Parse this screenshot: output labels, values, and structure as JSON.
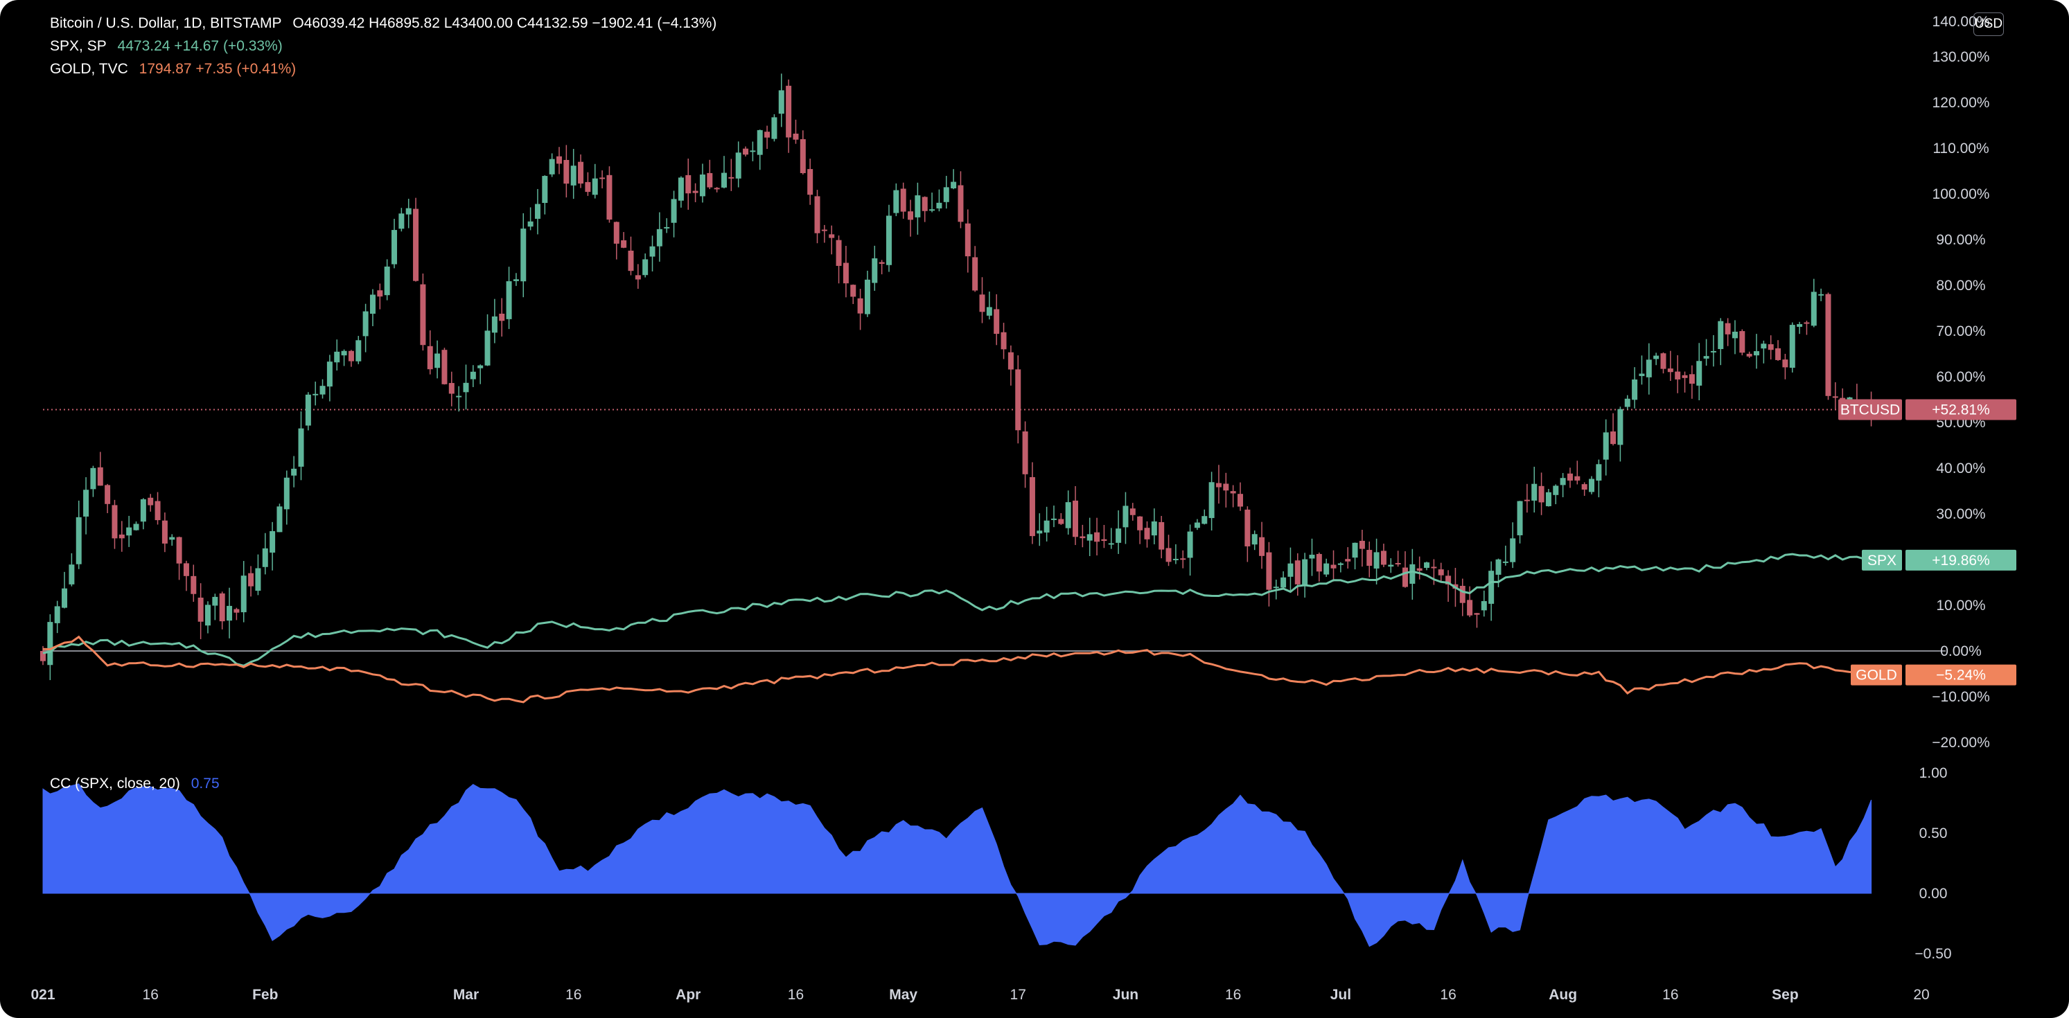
{
  "legend": {
    "btc": {
      "title": "Bitcoin / U.S. Dollar, 1D, BITSTAMP",
      "ohlc": "O46039.42 H46895.82 L43400.00 C44132.59 −1902.41 (−4.13%)"
    },
    "spx": {
      "title": "SPX, SP",
      "value": "4473.24 +14.67 (+0.33%)"
    },
    "gold": {
      "title": "GOLD, TVC",
      "value": "1794.87 +7.35 (+0.41%)"
    },
    "cc": {
      "title": "CC (SPX, close, 20)",
      "value": "0.75"
    }
  },
  "currency_button": "USD",
  "colors": {
    "up": "#5fb59a",
    "down": "#c25e6c",
    "spx": "#6fc4a6",
    "gold": "#f0845c",
    "cc": "#3f66f5",
    "zero": "#9598a1"
  },
  "chart_data": [
    {
      "type": "candlestick+line",
      "title": "Bitcoin / U.S. Dollar, 1D, BITSTAMP",
      "y_unit": "%",
      "ylim": [
        -20,
        140
      ],
      "y_ticks": [
        130,
        120,
        110,
        100,
        90,
        80,
        70,
        60,
        50,
        40,
        30,
        20,
        10,
        0,
        -10,
        -20
      ],
      "y_tick_labels": [
        "130.00%",
        "120.00%",
        "110.00%",
        "100.00%",
        "90.00%",
        "80.00%",
        "70.00%",
        "60.00%",
        "50.00%",
        "40.00%",
        "30.00%",
        "20.00%",
        "10.00%",
        "0.00%",
        "−10.00%",
        "−20.00%"
      ],
      "y_top_partial_label": "140.00%",
      "x_range": [
        "2021-01-01",
        "2021-09-20"
      ],
      "x_ticks": [
        {
          "date": "2021-01-01",
          "label": "021"
        },
        {
          "date": "2021-01-16",
          "label": "16"
        },
        {
          "date": "2021-02-01",
          "label": "Feb"
        },
        {
          "date": "2021-03-01",
          "label": "Mar"
        },
        {
          "date": "2021-03-16",
          "label": "16"
        },
        {
          "date": "2021-04-01",
          "label": "Apr"
        },
        {
          "date": "2021-04-16",
          "label": "16"
        },
        {
          "date": "2021-05-01",
          "label": "May"
        },
        {
          "date": "2021-05-17",
          "label": "17"
        },
        {
          "date": "2021-06-01",
          "label": "Jun"
        },
        {
          "date": "2021-06-16",
          "label": "16"
        },
        {
          "date": "2021-07-01",
          "label": "Jul"
        },
        {
          "date": "2021-07-16",
          "label": "16"
        },
        {
          "date": "2021-08-01",
          "label": "Aug"
        },
        {
          "date": "2021-08-16",
          "label": "16"
        },
        {
          "date": "2021-09-01",
          "label": "Sep"
        },
        {
          "date": "2021-09-20",
          "label": "20"
        }
      ],
      "btc_close_keypoints": [
        [
          "2021-01-01",
          0
        ],
        [
          "2021-01-04",
          14
        ],
        [
          "2021-01-08",
          40
        ],
        [
          "2021-01-12",
          24
        ],
        [
          "2021-01-16",
          33
        ],
        [
          "2021-01-22",
          10
        ],
        [
          "2021-01-27",
          8
        ],
        [
          "2021-02-01",
          22
        ],
        [
          "2021-02-08",
          58
        ],
        [
          "2021-02-14",
          68
        ],
        [
          "2021-02-21",
          97
        ],
        [
          "2021-02-23",
          67
        ],
        [
          "2021-02-28",
          55
        ],
        [
          "2021-03-05",
          70
        ],
        [
          "2021-03-13",
          108
        ],
        [
          "2021-03-20",
          100
        ],
        [
          "2021-03-25",
          80
        ],
        [
          "2021-03-31",
          103
        ],
        [
          "2021-04-05",
          100
        ],
        [
          "2021-04-14",
          120
        ],
        [
          "2021-04-18",
          98
        ],
        [
          "2021-04-25",
          73
        ],
        [
          "2021-04-30",
          98
        ],
        [
          "2021-05-05",
          95
        ],
        [
          "2021-05-08",
          102
        ],
        [
          "2021-05-12",
          75
        ],
        [
          "2021-05-16",
          65
        ],
        [
          "2021-05-19",
          25
        ],
        [
          "2021-05-22",
          32
        ],
        [
          "2021-05-28",
          24
        ],
        [
          "2021-06-02",
          30
        ],
        [
          "2021-06-08",
          20
        ],
        [
          "2021-06-14",
          38
        ],
        [
          "2021-06-21",
          16
        ],
        [
          "2021-06-27",
          18
        ],
        [
          "2021-07-03",
          22
        ],
        [
          "2021-07-08",
          18
        ],
        [
          "2021-07-14",
          16
        ],
        [
          "2021-07-20",
          7
        ],
        [
          "2021-07-26",
          30
        ],
        [
          "2021-08-01",
          41
        ],
        [
          "2021-08-04",
          35
        ],
        [
          "2021-08-08",
          48
        ],
        [
          "2021-08-14",
          64
        ],
        [
          "2021-08-18",
          58
        ],
        [
          "2021-08-23",
          70
        ],
        [
          "2021-08-31",
          62
        ],
        [
          "2021-09-06",
          80
        ],
        [
          "2021-09-07",
          58
        ],
        [
          "2021-09-13",
          52.81
        ]
      ],
      "series": [
        {
          "name": "BTCUSD",
          "last_label": "+52.81%",
          "last_value": 52.81
        },
        {
          "name": "SPX",
          "last_label": "+19.86%",
          "last_value": 19.86,
          "keypoints": [
            [
              "2021-01-01",
              0
            ],
            [
              "2021-01-08",
              2
            ],
            [
              "2021-01-22",
              1
            ],
            [
              "2021-01-29",
              -3
            ],
            [
              "2021-02-05",
              3
            ],
            [
              "2021-02-16",
              5
            ],
            [
              "2021-02-25",
              4
            ],
            [
              "2021-03-04",
              1
            ],
            [
              "2021-03-12",
              6
            ],
            [
              "2021-03-22",
              5
            ],
            [
              "2021-04-01",
              8
            ],
            [
              "2021-04-16",
              11
            ],
            [
              "2021-05-07",
              13
            ],
            [
              "2021-05-12",
              9
            ],
            [
              "2021-05-21",
              12
            ],
            [
              "2021-06-08",
              13
            ],
            [
              "2021-06-18",
              12
            ],
            [
              "2021-06-30",
              15
            ],
            [
              "2021-07-12",
              17
            ],
            [
              "2021-07-19",
              13
            ],
            [
              "2021-07-26",
              17
            ],
            [
              "2021-08-06",
              18
            ],
            [
              "2021-08-20",
              18
            ],
            [
              "2021-09-02",
              21
            ],
            [
              "2021-09-13",
              19.86
            ]
          ]
        },
        {
          "name": "GOLD",
          "last_label": "−5.24%",
          "last_value": -5.24,
          "keypoints": [
            [
              "2021-01-01",
              0
            ],
            [
              "2021-01-06",
              3
            ],
            [
              "2021-01-10",
              -3
            ],
            [
              "2021-01-27",
              -3
            ],
            [
              "2021-02-12",
              -4
            ],
            [
              "2021-02-26",
              -9
            ],
            [
              "2021-03-08",
              -11
            ],
            [
              "2021-03-20",
              -8
            ],
            [
              "2021-03-31",
              -9
            ],
            [
              "2021-04-16",
              -6
            ],
            [
              "2021-05-05",
              -3
            ],
            [
              "2021-05-20",
              -1
            ],
            [
              "2021-06-02",
              0
            ],
            [
              "2021-06-10",
              -1
            ],
            [
              "2021-06-17",
              -5
            ],
            [
              "2021-06-29",
              -7
            ],
            [
              "2021-07-15",
              -4
            ],
            [
              "2021-08-06",
              -5
            ],
            [
              "2021-08-10",
              -9
            ],
            [
              "2021-08-20",
              -6
            ],
            [
              "2021-09-03",
              -3
            ],
            [
              "2021-09-13",
              -5.24
            ]
          ]
        }
      ],
      "last_price_line": 52.81,
      "grid": false
    },
    {
      "type": "area",
      "title": "CC (SPX, close, 20)",
      "last_value": 0.75,
      "ylim": [
        -0.65,
        1.05
      ],
      "y_ticks": [
        1.0,
        0.5,
        0.0,
        -0.5
      ],
      "y_tick_labels": [
        "1.00",
        "0.50",
        "0.00",
        "−0.50"
      ],
      "keypoints": [
        [
          "2021-01-01",
          0.85
        ],
        [
          "2021-01-06",
          0.88
        ],
        [
          "2021-01-09",
          0.68
        ],
        [
          "2021-01-14",
          0.87
        ],
        [
          "2021-01-20",
          0.85
        ],
        [
          "2021-01-25",
          0.55
        ],
        [
          "2021-01-29",
          0.1
        ],
        [
          "2021-02-02",
          -0.42
        ],
        [
          "2021-02-06",
          -0.2
        ],
        [
          "2021-02-13",
          -0.18
        ],
        [
          "2021-02-16",
          0.0
        ],
        [
          "2021-02-22",
          0.45
        ],
        [
          "2021-03-02",
          0.88
        ],
        [
          "2021-03-08",
          0.8
        ],
        [
          "2021-03-14",
          0.2
        ],
        [
          "2021-03-18",
          0.2
        ],
        [
          "2021-03-26",
          0.55
        ],
        [
          "2021-04-05",
          0.85
        ],
        [
          "2021-04-12",
          0.8
        ],
        [
          "2021-04-18",
          0.7
        ],
        [
          "2021-04-23",
          0.3
        ],
        [
          "2021-05-01",
          0.6
        ],
        [
          "2021-05-07",
          0.48
        ],
        [
          "2021-05-12",
          0.7
        ],
        [
          "2021-05-16",
          0.1
        ],
        [
          "2021-05-20",
          -0.4
        ],
        [
          "2021-05-25",
          -0.45
        ],
        [
          "2021-06-02",
          0.05
        ],
        [
          "2021-06-06",
          0.35
        ],
        [
          "2021-06-12",
          0.5
        ],
        [
          "2021-06-17",
          0.8
        ],
        [
          "2021-06-26",
          0.5
        ],
        [
          "2021-07-01",
          0.05
        ],
        [
          "2021-07-05",
          -0.45
        ],
        [
          "2021-07-09",
          -0.2
        ],
        [
          "2021-07-14",
          -0.3
        ],
        [
          "2021-07-18",
          0.25
        ],
        [
          "2021-07-22",
          -0.3
        ],
        [
          "2021-07-26",
          -0.3
        ],
        [
          "2021-07-30",
          0.6
        ],
        [
          "2021-08-05",
          0.8
        ],
        [
          "2021-08-14",
          0.75
        ],
        [
          "2021-08-18",
          0.55
        ],
        [
          "2021-08-25",
          0.75
        ],
        [
          "2021-08-31",
          0.45
        ],
        [
          "2021-09-06",
          0.55
        ],
        [
          "2021-09-08",
          0.2
        ],
        [
          "2021-09-13",
          0.75
        ]
      ]
    }
  ]
}
